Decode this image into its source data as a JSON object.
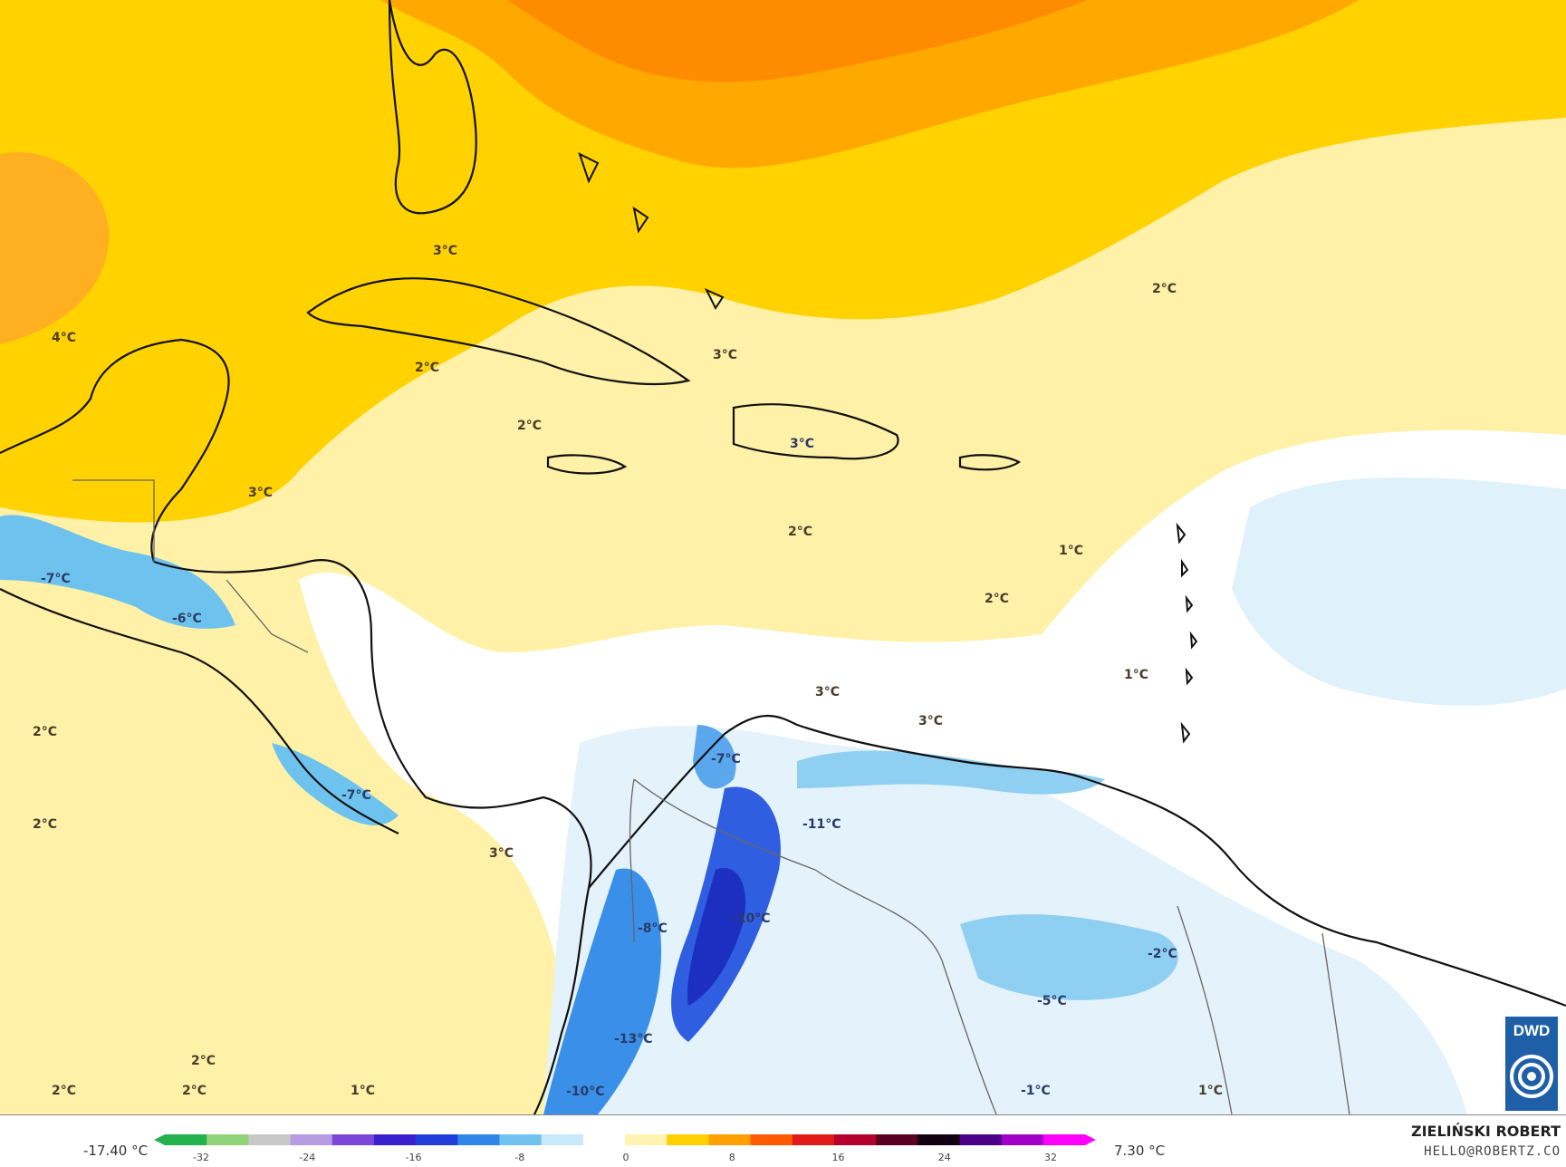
{
  "map": {
    "labels": [
      {
        "text": "3°C"
      },
      {
        "text": "4°C"
      },
      {
        "text": "2°C"
      },
      {
        "text": "3°C"
      },
      {
        "text": "2°C"
      },
      {
        "text": "2°C"
      },
      {
        "text": "3°C"
      },
      {
        "text": "3°C"
      },
      {
        "text": "2°C"
      },
      {
        "text": "1°C"
      },
      {
        "text": "2°C"
      },
      {
        "text": "1°C"
      },
      {
        "text": "-7°C"
      },
      {
        "text": "-6°C"
      },
      {
        "text": "2°C"
      },
      {
        "text": "2°C"
      },
      {
        "text": "-7°C"
      },
      {
        "text": "3°C"
      },
      {
        "text": "3°C"
      },
      {
        "text": "3°C"
      },
      {
        "text": "-7°C"
      },
      {
        "text": "-11°C"
      },
      {
        "text": "-10°C"
      },
      {
        "text": "-8°C"
      },
      {
        "text": "-13°C"
      },
      {
        "text": "-10°C"
      },
      {
        "text": "-2°C"
      },
      {
        "text": "-5°C"
      },
      {
        "text": "-1°C"
      },
      {
        "text": "1°C"
      },
      {
        "text": "1°C"
      },
      {
        "text": "2°C"
      },
      {
        "text": "2°C"
      },
      {
        "text": "2°C"
      }
    ]
  },
  "legend": {
    "min_label": "-17.40 °C",
    "max_label": "7.30 °C",
    "ticks": [
      "-32",
      "-24",
      "-16",
      "-8",
      "0",
      "8",
      "16",
      "24",
      "32"
    ],
    "colors": [
      "#22b14c",
      "#8fd27a",
      "#c8c8c8",
      "#b59be0",
      "#7b45d9",
      "#3a1fcf",
      "#1f3fd8",
      "#2f86e8",
      "#72c2f0",
      "#c7e9f9",
      "#ffffff",
      "#fff3b0",
      "#ffd000",
      "#ffa000",
      "#ff5a00",
      "#e11a1a",
      "#b3002d",
      "#5a0020",
      "#120010",
      "#4b0088",
      "#a100c8",
      "#ff00ff"
    ]
  },
  "branding": {
    "logo": "DWD",
    "name": "ZIELIŃSKI ROBERT",
    "email": "HELLO@ROBERTZ.CO"
  }
}
